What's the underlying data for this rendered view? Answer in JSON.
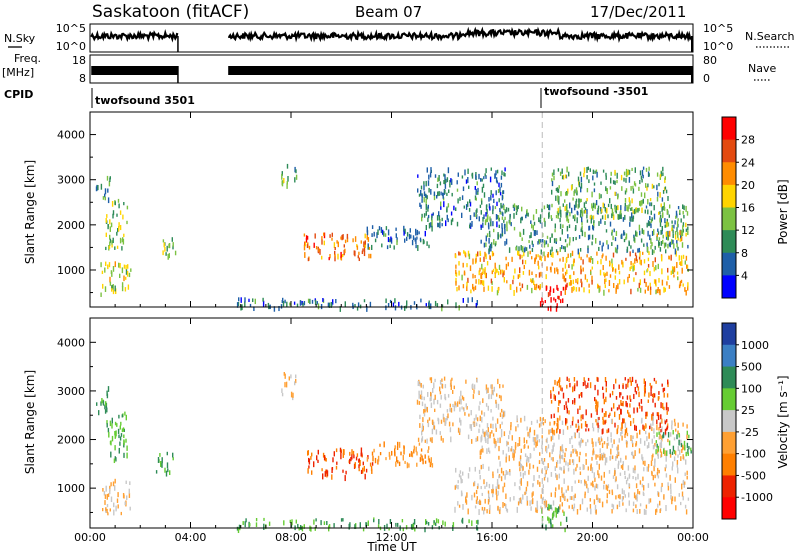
{
  "header": {
    "station": "Saskatoon (fitACF)",
    "beam": "Beam 07",
    "date": "17/Dec/2011"
  },
  "panels": {
    "nsky": {
      "left_label": "N.Sky",
      "right_label": "N.Search",
      "left_ticks": [
        "10^5",
        "10^0"
      ],
      "right_ticks": [
        "10^5",
        "10^0"
      ]
    },
    "freq": {
      "left_label_1": "Freq.",
      "left_label_2": "[MHz]",
      "right_label": "Nave",
      "left_ticks": [
        "18",
        "8"
      ],
      "right_ticks": [
        "80",
        "0"
      ]
    },
    "cpid": {
      "label": "CPID",
      "segments": [
        {
          "name": "twofsound 3501",
          "start_hour": 0
        },
        {
          "name": "twofsound -3501",
          "start_hour": 18
        }
      ]
    }
  },
  "chart_data": {
    "type": "heatmap",
    "x_axis": {
      "label": "Time UT",
      "range_hours": [
        0,
        24
      ],
      "ticks": [
        "00:00",
        "04:00",
        "08:00",
        "12:00",
        "16:00",
        "20:00",
        "00:00"
      ]
    },
    "y_axis": {
      "label": "Slant Range [km]",
      "range": [
        180,
        4500
      ],
      "ticks": [
        1000,
        2000,
        3000,
        4000
      ]
    },
    "power_panel": {
      "colorbar_label": "Power [dB]",
      "colorbar_ticks": [
        "28",
        "24",
        "20",
        "16",
        "12",
        "8",
        "4"
      ],
      "colors": [
        "#ff0000",
        "#e34a10",
        "#ff8c00",
        "#ffd400",
        "#7cc242",
        "#2e8b57",
        "#1e5fa8",
        "#0000ff"
      ]
    },
    "velocity_panel": {
      "colorbar_label": "Velocity [m s⁻¹]",
      "colorbar_ticks": [
        "1000",
        "500",
        "100",
        "25",
        "-25",
        "-100",
        "-500",
        "-1000"
      ],
      "colors": [
        "#1f3fa0",
        "#3b7fc4",
        "#2e8b57",
        "#66cc33",
        "#c8c8c8",
        "#ffa033",
        "#ff7f00",
        "#ee2200",
        "#ff0000"
      ]
    },
    "data_gap_hours": [
      3.5,
      5.5
    ],
    "cpid_change_hour": 18,
    "scatter_regions": [
      {
        "t0": 0.4,
        "t1": 1.6,
        "r0": 500,
        "r1": 1200,
        "power": 14,
        "velocity": -25
      },
      {
        "t0": 0.6,
        "t1": 1.5,
        "r0": 1500,
        "r1": 2600,
        "power": 12,
        "velocity": 100
      },
      {
        "t0": 0.2,
        "t1": 0.8,
        "r0": 2600,
        "r1": 3100,
        "power": 8,
        "velocity": 100
      },
      {
        "t0": 2.6,
        "t1": 3.4,
        "r0": 1350,
        "r1": 1750,
        "power": 12,
        "velocity": 100
      },
      {
        "t0": 8.5,
        "t1": 11.3,
        "r0": 1250,
        "r1": 1850,
        "power": 22,
        "velocity": -500
      },
      {
        "t0": 11.0,
        "t1": 13.6,
        "r0": 1500,
        "r1": 2000,
        "power": 6,
        "velocity": -100
      },
      {
        "t0": 7.6,
        "t1": 8.2,
        "r0": 2900,
        "r1": 3400,
        "power": 10,
        "velocity": -25
      },
      {
        "t0": 14.5,
        "t1": 23.8,
        "r0": 550,
        "r1": 1450,
        "power": 18,
        "velocity": -25
      },
      {
        "t0": 15.5,
        "t1": 23.8,
        "r0": 1450,
        "r1": 2500,
        "power": 8,
        "velocity": -25
      },
      {
        "t0": 13.0,
        "t1": 16.5,
        "r0": 2000,
        "r1": 3300,
        "power": 6,
        "velocity": -25
      },
      {
        "t0": 18.3,
        "t1": 23.0,
        "r0": 2200,
        "r1": 3300,
        "power": 10,
        "velocity": -500
      },
      {
        "t0": 22.5,
        "t1": 23.9,
        "r0": 1700,
        "r1": 2200,
        "power": 14,
        "velocity": 100
      },
      {
        "t0": 17.9,
        "t1": 19.0,
        "r0": 190,
        "r1": 700,
        "power": 30,
        "velocity": 100
      },
      {
        "t0": 5.6,
        "t1": 15.5,
        "r0": 190,
        "r1": 400,
        "power": 6,
        "velocity": 100
      }
    ]
  }
}
